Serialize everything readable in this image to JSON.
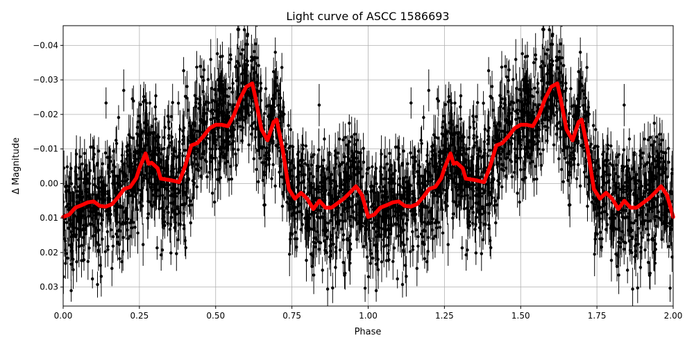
{
  "chart_data": {
    "type": "scatter",
    "title": "Light curve of ASCC 1586693",
    "xlabel": "Phase",
    "ylabel": "Δ Magnitude",
    "xlim": [
      0,
      2
    ],
    "ylim": [
      0.0355,
      -0.0457
    ],
    "y_inverted": true,
    "grid": true,
    "xticks": [
      0,
      0.25,
      0.5,
      0.75,
      1.0,
      1.25,
      1.5,
      1.75,
      2.0
    ],
    "xtick_labels": [
      "0.00",
      "0.25",
      "0.50",
      "0.75",
      "1.00",
      "1.25",
      "1.50",
      "1.75",
      "2.00"
    ],
    "yticks": [
      -0.04,
      -0.03,
      -0.02,
      -0.01,
      0.0,
      0.01,
      0.02,
      0.03
    ],
    "ytick_labels": [
      "−0.04",
      "−0.03",
      "−0.02",
      "−0.01",
      "0.00",
      "0.01",
      "0.02",
      "0.03"
    ],
    "colors": {
      "points": "#000000",
      "model": "#ff0000",
      "grid": "#b0b0b0"
    },
    "model_curve": {
      "x": [
        0.0,
        0.02,
        0.04,
        0.06,
        0.08,
        0.1,
        0.12,
        0.14,
        0.16,
        0.18,
        0.2,
        0.22,
        0.24,
        0.25,
        0.27,
        0.28,
        0.29,
        0.31,
        0.32,
        0.35,
        0.38,
        0.4,
        0.42,
        0.44,
        0.46,
        0.48,
        0.5,
        0.52,
        0.54,
        0.56,
        0.58,
        0.6,
        0.62,
        0.63,
        0.65,
        0.67,
        0.69,
        0.7,
        0.72,
        0.74,
        0.76,
        0.78,
        0.8,
        0.82,
        0.84,
        0.86,
        0.88,
        0.9,
        0.92,
        0.94,
        0.96,
        0.98,
        1.0,
        1.02,
        1.04,
        1.06,
        1.08,
        1.1,
        1.12,
        1.14,
        1.16,
        1.18,
        1.2,
        1.22,
        1.24,
        1.25,
        1.27,
        1.28,
        1.29,
        1.31,
        1.32,
        1.35,
        1.38,
        1.4,
        1.42,
        1.44,
        1.46,
        1.48,
        1.5,
        1.52,
        1.54,
        1.56,
        1.58,
        1.6,
        1.62,
        1.63,
        1.65,
        1.67,
        1.69,
        1.7,
        1.72,
        1.74,
        1.76,
        1.78,
        1.8,
        1.82,
        1.84,
        1.86,
        1.88,
        1.9,
        1.92,
        1.94,
        1.96,
        1.98,
        2.0
      ],
      "y": [
        0.0097,
        0.009,
        0.007,
        0.0063,
        0.0055,
        0.0052,
        0.0065,
        0.0067,
        0.006,
        0.004,
        0.0016,
        0.001,
        -0.0016,
        -0.0044,
        -0.0087,
        -0.0057,
        -0.006,
        -0.0044,
        -0.0014,
        -0.001,
        -0.0004,
        -0.005,
        -0.011,
        -0.0117,
        -0.0137,
        -0.016,
        -0.017,
        -0.017,
        -0.0166,
        -0.0198,
        -0.0245,
        -0.028,
        -0.029,
        -0.025,
        -0.0157,
        -0.0125,
        -0.0178,
        -0.0185,
        -0.0097,
        0.0016,
        0.0044,
        0.0027,
        0.0044,
        0.0074,
        0.005,
        0.007,
        0.007,
        0.0057,
        0.0044,
        0.0027,
        0.0008,
        0.0034,
        0.0097,
        0.009,
        0.007,
        0.0063,
        0.0055,
        0.0052,
        0.0065,
        0.0067,
        0.006,
        0.004,
        0.0016,
        0.001,
        -0.0016,
        -0.0044,
        -0.0087,
        -0.0057,
        -0.006,
        -0.0044,
        -0.0014,
        -0.001,
        -0.0004,
        -0.005,
        -0.011,
        -0.0117,
        -0.0137,
        -0.016,
        -0.017,
        -0.017,
        -0.0166,
        -0.0198,
        -0.0245,
        -0.028,
        -0.029,
        -0.025,
        -0.0157,
        -0.0125,
        -0.0178,
        -0.0185,
        -0.0097,
        0.0016,
        0.0044,
        0.0027,
        0.0044,
        0.0074,
        0.005,
        0.007,
        0.007,
        0.0057,
        0.0044,
        0.0027,
        0.0008,
        0.0034,
        0.0097
      ]
    }
  }
}
